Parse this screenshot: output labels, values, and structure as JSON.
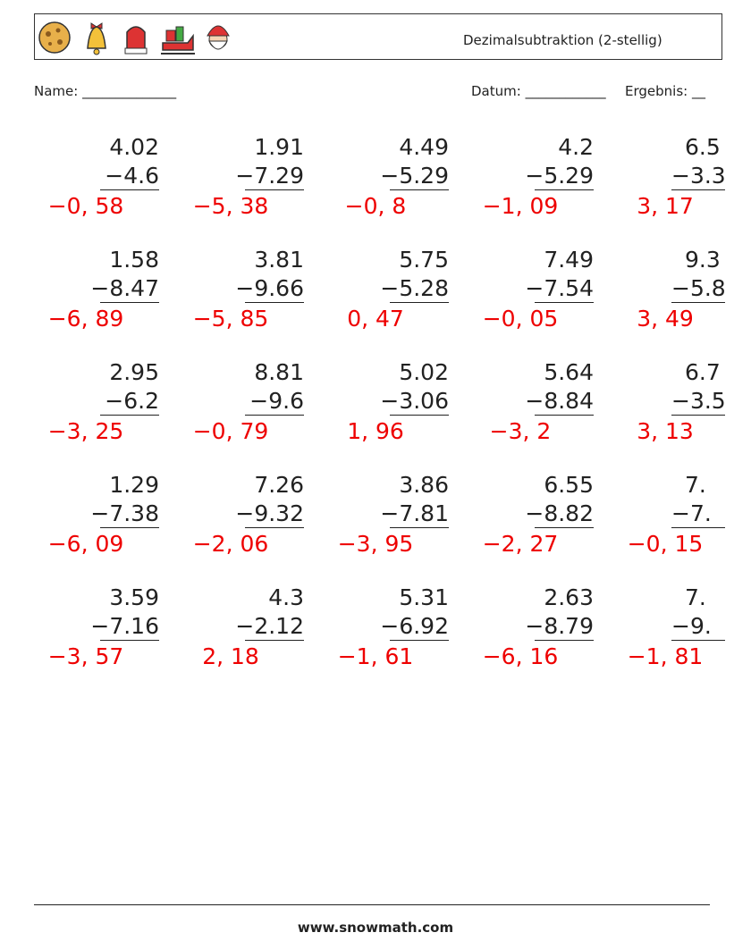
{
  "header": {
    "title": "Dezimalsubtraktion (2-stellig)"
  },
  "fields": {
    "name": "Name: ______________",
    "date": "Datum: ____________",
    "result": "Ergebnis: __"
  },
  "problems": [
    [
      {
        "minuend": "4.02",
        "subtrahend": "−4.6",
        "answer": "−0, 58"
      },
      {
        "minuend": "1.91",
        "subtrahend": "−7.29",
        "answer": "−5, 38"
      },
      {
        "minuend": "4.49",
        "subtrahend": "−5.29",
        "answer": "−0, 8"
      },
      {
        "minuend": "4.2",
        "subtrahend": "−5.29",
        "answer": "−1, 09"
      },
      {
        "minuend": "6.5",
        "subtrahend": "−3.3",
        "answer": "3, 17"
      }
    ],
    [
      {
        "minuend": "1.58",
        "subtrahend": "−8.47",
        "answer": "−6, 89"
      },
      {
        "minuend": "3.81",
        "subtrahend": "−9.66",
        "answer": "−5, 85"
      },
      {
        "minuend": "5.75",
        "subtrahend": "−5.28",
        "answer": "0, 47"
      },
      {
        "minuend": "7.49",
        "subtrahend": "−7.54",
        "answer": "−0, 05"
      },
      {
        "minuend": "9.3",
        "subtrahend": "−5.8",
        "answer": "3, 49"
      }
    ],
    [
      {
        "minuend": "2.95",
        "subtrahend": "−6.2",
        "answer": "−3, 25"
      },
      {
        "minuend": "8.81",
        "subtrahend": "−9.6",
        "answer": "−0, 79"
      },
      {
        "minuend": "5.02",
        "subtrahend": "−3.06",
        "answer": "1, 96"
      },
      {
        "minuend": "5.64",
        "subtrahend": "−8.84",
        "answer": "−3, 2"
      },
      {
        "minuend": "6.7",
        "subtrahend": "−3.5",
        "answer": "3, 13"
      }
    ],
    [
      {
        "minuend": "1.29",
        "subtrahend": "−7.38",
        "answer": "−6, 09"
      },
      {
        "minuend": "7.26",
        "subtrahend": "−9.32",
        "answer": "−2, 06"
      },
      {
        "minuend": "3.86",
        "subtrahend": "−7.81",
        "answer": "−3, 95"
      },
      {
        "minuend": "6.55",
        "subtrahend": "−8.82",
        "answer": "−2, 27"
      },
      {
        "minuend": "7.",
        "subtrahend": "−7.",
        "answer": "−0, 15"
      }
    ],
    [
      {
        "minuend": "3.59",
        "subtrahend": "−7.16",
        "answer": "−3, 57"
      },
      {
        "minuend": "4.3",
        "subtrahend": "−2.12",
        "answer": "2, 18"
      },
      {
        "minuend": "5.31",
        "subtrahend": "−6.92",
        "answer": "−1, 61"
      },
      {
        "minuend": "2.63",
        "subtrahend": "−8.79",
        "answer": "−6, 16"
      },
      {
        "minuend": "7.",
        "subtrahend": "−9.",
        "answer": "−1, 81"
      }
    ]
  ],
  "footer": {
    "url": "www.snowmath.com"
  }
}
